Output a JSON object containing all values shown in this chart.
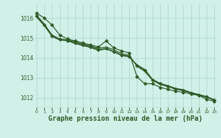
{
  "background_color": "#d0f0e8",
  "plot_bg_color": "#d0f0e8",
  "line_color": "#2d5a27",
  "grid_color": "#b0d8d0",
  "xlabel": "Graphe pression niveau de la mer (hPa)",
  "xlabel_fontsize": 7,
  "ytick_labels": [
    "1012",
    "1013",
    "1014",
    "1015",
    "1016"
  ],
  "yticks": [
    1012,
    1013,
    1014,
    1015,
    1016
  ],
  "xticks": [
    0,
    1,
    2,
    3,
    4,
    5,
    6,
    7,
    8,
    9,
    10,
    11,
    12,
    13,
    14,
    15,
    16,
    17,
    18,
    19,
    20,
    21,
    22,
    23
  ],
  "ylim": [
    1011.5,
    1016.7
  ],
  "xlim": [
    -0.3,
    23.3
  ],
  "series": [
    [
      1016.25,
      1016.0,
      1015.65,
      1015.15,
      1014.95,
      1014.85,
      1014.75,
      1014.65,
      1014.55,
      1014.85,
      1014.5,
      1014.35,
      1014.25,
      1013.05,
      1012.7,
      1012.7,
      1012.52,
      1012.42,
      1012.32,
      1012.28,
      1012.18,
      1012.12,
      1011.92,
      1011.82
    ],
    [
      1016.15,
      1015.7,
      1015.15,
      1014.95,
      1014.9,
      1014.8,
      1014.7,
      1014.6,
      1014.48,
      1014.55,
      1014.4,
      1014.22,
      1014.12,
      1013.58,
      1013.32,
      1012.88,
      1012.66,
      1012.56,
      1012.42,
      1012.36,
      1012.22,
      1012.12,
      1012.02,
      1011.88
    ],
    [
      1016.1,
      1015.65,
      1015.1,
      1014.92,
      1014.88,
      1014.75,
      1014.65,
      1014.55,
      1014.42,
      1014.47,
      1014.32,
      1014.15,
      1014.08,
      1013.62,
      1013.38,
      1012.9,
      1012.7,
      1012.58,
      1012.45,
      1012.38,
      1012.24,
      1012.14,
      1012.04,
      1011.88
    ],
    [
      1016.05,
      1015.62,
      1015.08,
      1014.9,
      1014.86,
      1014.72,
      1014.62,
      1014.52,
      1014.38,
      1014.45,
      1014.3,
      1014.12,
      1014.05,
      1013.65,
      1013.42,
      1012.92,
      1012.72,
      1012.6,
      1012.47,
      1012.4,
      1012.26,
      1012.16,
      1012.06,
      1011.9
    ]
  ],
  "marker_series": [
    0,
    2
  ],
  "marker": "D",
  "markersize": 2.5,
  "linewidth": 0.9
}
